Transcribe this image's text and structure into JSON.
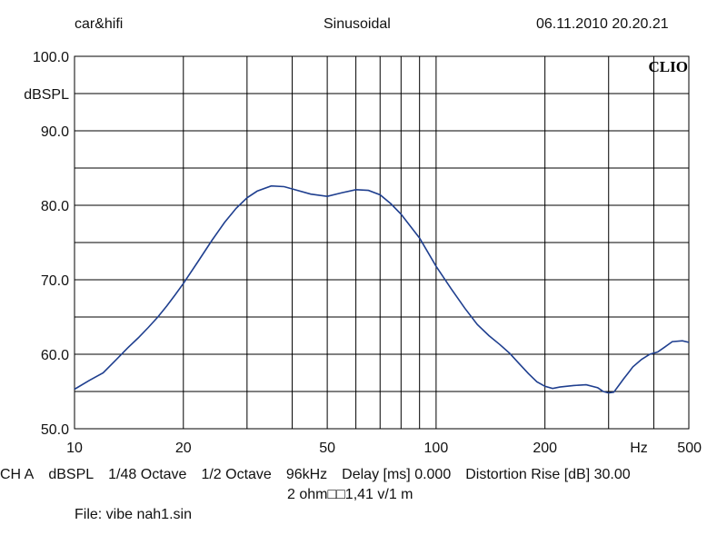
{
  "header": {
    "left": "car&hifi",
    "center": "Sinusoidal",
    "right": "06.11.2010 20.20.21"
  },
  "logo_text": "CLIO",
  "footer": {
    "line1": [
      "CH A",
      "dBSPL",
      "1/48 Octave",
      "1/2 Octave",
      "96kHz",
      "Delay [ms] 0.000",
      "Distortion Rise [dB] 30.00"
    ],
    "line2": "2 ohm□□1,41 v/1 m",
    "line3": "File: vibe nah1.sin"
  },
  "colors": {
    "curve": "#1f3f8f",
    "grid": "#000000",
    "background": "#ffffff"
  },
  "chart_data": {
    "type": "line",
    "title": "",
    "xlabel": "Hz",
    "ylabel": "dBSPL",
    "xscale": "log",
    "xlim": [
      10,
      500
    ],
    "ylim": [
      50,
      100
    ],
    "grid": true,
    "x_ticks": [
      {
        "value": 10,
        "label": "10"
      },
      {
        "value": 20,
        "label": "20"
      },
      {
        "value": 50,
        "label": "50"
      },
      {
        "value": 100,
        "label": "100"
      },
      {
        "value": 200,
        "label": "200"
      },
      {
        "value": 500,
        "label": "500"
      }
    ],
    "y_ticks": [
      {
        "value": 100,
        "label": "100.0"
      },
      {
        "value": 90,
        "label": "90.0"
      },
      {
        "value": 80,
        "label": "80.0"
      },
      {
        "value": 70,
        "label": "70.0"
      },
      {
        "value": 60,
        "label": "60.0"
      },
      {
        "value": 50,
        "label": "50.0"
      }
    ],
    "series": [
      {
        "x": [
          10,
          11,
          12,
          13,
          14,
          15,
          16,
          17,
          18,
          19,
          20,
          22,
          24,
          26,
          28,
          30,
          32,
          35,
          38,
          40,
          45,
          50,
          55,
          60,
          65,
          70,
          75,
          80,
          90,
          100,
          110,
          120,
          130,
          140,
          150,
          160,
          170,
          180,
          190,
          200,
          210,
          220,
          240,
          260,
          280,
          290,
          300,
          310,
          320,
          330,
          340,
          350,
          370,
          390,
          410,
          430,
          450,
          480,
          500
        ],
        "y": [
          55.3,
          56.5,
          57.5,
          59.2,
          60.8,
          62.2,
          63.6,
          65.0,
          66.5,
          68.0,
          69.5,
          72.5,
          75.3,
          77.7,
          79.6,
          81.0,
          81.9,
          82.6,
          82.5,
          82.2,
          81.5,
          81.2,
          81.7,
          82.1,
          82.0,
          81.4,
          80.2,
          78.8,
          75.6,
          71.8,
          68.8,
          66.2,
          64.0,
          62.5,
          61.3,
          60.1,
          58.7,
          57.4,
          56.3,
          55.7,
          55.4,
          55.6,
          55.8,
          55.9,
          55.5,
          55.0,
          54.8,
          54.9,
          55.8,
          56.7,
          57.5,
          58.3,
          59.3,
          60.0,
          60.3,
          61.0,
          61.7,
          61.8,
          61.6
        ]
      }
    ]
  }
}
